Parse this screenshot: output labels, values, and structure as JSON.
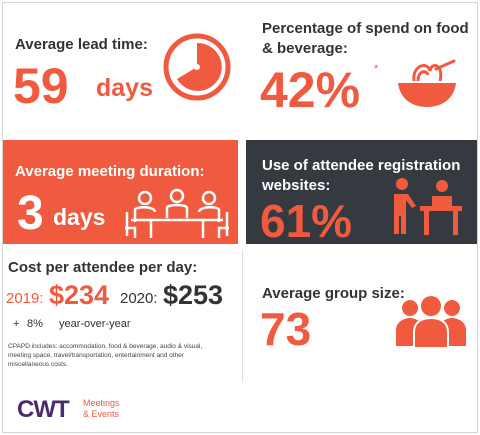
{
  "colors": {
    "accent": "#f05a3e",
    "dark": "#343a40",
    "brand": "#4a2c6b"
  },
  "lead_time": {
    "label": "Average lead time:",
    "value": "59",
    "unit": "days",
    "icon": "clock-icon"
  },
  "food": {
    "label_line1": "Percentage of spend on food",
    "label_line2": "& beverage:",
    "value": "42%",
    "note": "*",
    "icon": "food-bowl-icon"
  },
  "meeting": {
    "label": "Average meeting duration:",
    "value": "3",
    "unit": "days",
    "icon": "meeting-table-icon"
  },
  "websites": {
    "label_line1": "Use of attendee registration",
    "label_line2": "websites:",
    "value": "61%",
    "icon": "registration-desk-icon"
  },
  "cost": {
    "label": "Cost per attendee per day:",
    "y2019_label": "2019:",
    "y2019_value": "$234",
    "y2020_label": "2020:",
    "y2020_value": "$253",
    "change_sign": "+",
    "change_value": "8%",
    "change_text": "year-over-year",
    "footnote": "CPAPD includes: accommodation, food & beverage, audio & visual, meeting space, travel/transportation, entertainment and other miscellaneous costs."
  },
  "group": {
    "label": "Average group size:",
    "value": "73",
    "icon": "group-people-icon"
  },
  "footer": {
    "logo": "CWT",
    "sub_line1": "Meetings",
    "sub_line2": "& Events"
  }
}
